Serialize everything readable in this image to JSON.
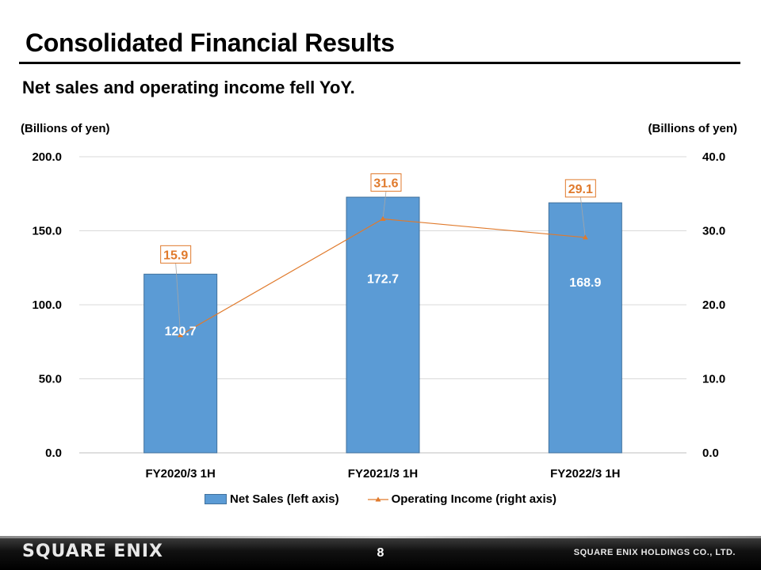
{
  "slide": {
    "title": "Consolidated Financial Results",
    "subtitle": "Net sales and operating income fell YoY."
  },
  "chart_data": {
    "type": "bar",
    "categories": [
      "FY2020/3 1H",
      "FY2021/3 1H",
      "FY2022/3 1H"
    ],
    "series": [
      {
        "name": "Net Sales (left axis)",
        "type": "bar",
        "axis": "left",
        "values": [
          120.7,
          172.7,
          168.9
        ],
        "labels": [
          "120.7",
          "172.7",
          "168.9"
        ],
        "color": "#5b9bd5"
      },
      {
        "name": "Operating Income (right axis)",
        "type": "line",
        "axis": "right",
        "values": [
          15.9,
          31.6,
          29.1
        ],
        "labels": [
          "15.9",
          "31.6",
          "29.1"
        ],
        "color": "#e07a2c"
      }
    ],
    "y_left": {
      "label": "(Billions of yen)",
      "lim": [
        0,
        200
      ],
      "ticks": [
        "0.0",
        "50.0",
        "100.0",
        "150.0",
        "200.0"
      ]
    },
    "y_right": {
      "label": "(Billions of yen)",
      "lim": [
        0,
        40
      ],
      "ticks": [
        "0.0",
        "10.0",
        "20.0",
        "30.0",
        "40.0"
      ]
    },
    "grid": true,
    "legend": "bottom-center"
  },
  "footer": {
    "brand": "SQUARE ENIX",
    "page_number": "8",
    "company": "SQUARE ENIX HOLDINGS CO., LTD."
  }
}
